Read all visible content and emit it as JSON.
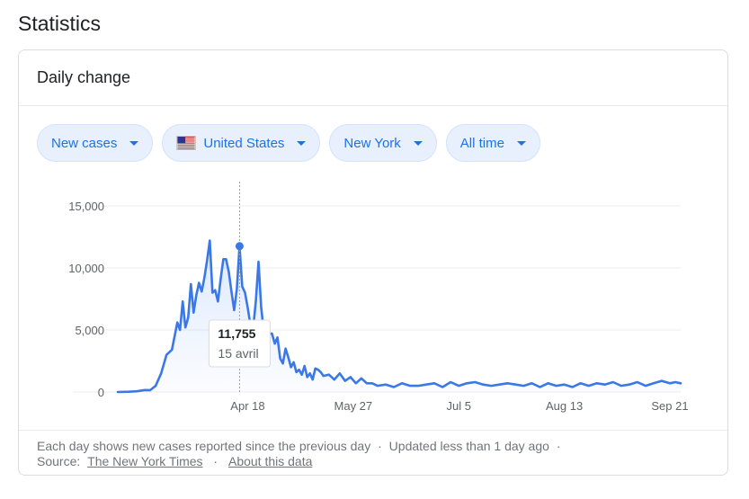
{
  "page": {
    "title": "Statistics"
  },
  "card": {
    "title": "Daily change"
  },
  "filters": [
    {
      "label": "New cases",
      "icon": ""
    },
    {
      "label": "United States",
      "icon": "us-flag-icon"
    },
    {
      "label": "New York",
      "icon": ""
    },
    {
      "label": "All time",
      "icon": ""
    }
  ],
  "tooltip": {
    "value": "11,755",
    "date": "15 avril"
  },
  "colors": {
    "line": "#3b78e7",
    "chip_bg": "#e8f0fe",
    "chip_text": "#1a73e8"
  },
  "footer": {
    "note": "Each day shows new cases reported since the previous day",
    "updated": "Updated less than 1 day ago",
    "source_label": "Source:",
    "source_link": "The New York Times",
    "about_link": "About this data"
  },
  "chart_data": {
    "type": "area",
    "xlabel": "",
    "ylabel": "",
    "ylim": [
      0,
      15000
    ],
    "yticks": [
      "0",
      "5,000",
      "10,000",
      "15,000"
    ],
    "xticks": [
      "Apr 18",
      "May 27",
      "Jul 5",
      "Aug 13",
      "Sep 21"
    ],
    "x_start": "2020-03-01",
    "x_end": "2020-09-25",
    "highlight": {
      "x": "2020-04-15",
      "y": 11755
    },
    "series": [
      {
        "name": "New cases",
        "x": [
          "2020-03-01",
          "2020-03-05",
          "2020-03-08",
          "2020-03-11",
          "2020-03-13",
          "2020-03-15",
          "2020-03-17",
          "2020-03-19",
          "2020-03-21",
          "2020-03-23",
          "2020-03-24",
          "2020-03-25",
          "2020-03-26",
          "2020-03-27",
          "2020-03-28",
          "2020-03-29",
          "2020-03-30",
          "2020-03-31",
          "2020-04-01",
          "2020-04-02",
          "2020-04-03",
          "2020-04-04",
          "2020-04-05",
          "2020-04-06",
          "2020-04-07",
          "2020-04-08",
          "2020-04-09",
          "2020-04-10",
          "2020-04-11",
          "2020-04-12",
          "2020-04-13",
          "2020-04-14",
          "2020-04-15",
          "2020-04-16",
          "2020-04-17",
          "2020-04-18",
          "2020-04-19",
          "2020-04-20",
          "2020-04-21",
          "2020-04-22",
          "2020-04-23",
          "2020-04-24",
          "2020-04-25",
          "2020-04-26",
          "2020-04-27",
          "2020-04-28",
          "2020-04-29",
          "2020-04-30",
          "2020-05-01",
          "2020-05-02",
          "2020-05-03",
          "2020-05-04",
          "2020-05-05",
          "2020-05-06",
          "2020-05-07",
          "2020-05-08",
          "2020-05-09",
          "2020-05-10",
          "2020-05-11",
          "2020-05-12",
          "2020-05-13",
          "2020-05-14",
          "2020-05-15",
          "2020-05-16",
          "2020-05-18",
          "2020-05-20",
          "2020-05-22",
          "2020-05-24",
          "2020-05-26",
          "2020-05-28",
          "2020-05-30",
          "2020-06-01",
          "2020-06-03",
          "2020-06-05",
          "2020-06-08",
          "2020-06-11",
          "2020-06-14",
          "2020-06-17",
          "2020-06-20",
          "2020-06-23",
          "2020-06-26",
          "2020-06-29",
          "2020-07-02",
          "2020-07-05",
          "2020-07-08",
          "2020-07-11",
          "2020-07-14",
          "2020-07-17",
          "2020-07-20",
          "2020-07-23",
          "2020-07-26",
          "2020-07-29",
          "2020-08-01",
          "2020-08-04",
          "2020-08-07",
          "2020-08-10",
          "2020-08-13",
          "2020-08-16",
          "2020-08-19",
          "2020-08-22",
          "2020-08-25",
          "2020-08-28",
          "2020-08-31",
          "2020-09-03",
          "2020-09-06",
          "2020-09-09",
          "2020-09-12",
          "2020-09-15",
          "2020-09-18",
          "2020-09-21",
          "2020-09-23",
          "2020-09-25"
        ],
        "y": [
          0,
          20,
          60,
          160,
          150,
          500,
          1500,
          3000,
          3400,
          5600,
          5000,
          7300,
          5200,
          6000,
          8700,
          6400,
          7800,
          8800,
          8100,
          9200,
          10600,
          12200,
          8000,
          8200,
          7300,
          9100,
          10700,
          10700,
          9700,
          8100,
          6600,
          8300,
          11755,
          8500,
          8000,
          6800,
          5400,
          5100,
          7300,
          10500,
          6800,
          4800,
          3300,
          4700,
          4700,
          3900,
          4400,
          2700,
          2300,
          3500,
          2800,
          2000,
          2400,
          1600,
          1800,
          1400,
          2100,
          1200,
          1500,
          1000,
          1900,
          1800,
          1600,
          1300,
          1400,
          1000,
          1500,
          900,
          1200,
          700,
          1100,
          700,
          700,
          500,
          600,
          400,
          700,
          500,
          500,
          600,
          700,
          400,
          800,
          500,
          700,
          800,
          600,
          500,
          600,
          700,
          600,
          500,
          700,
          400,
          700,
          500,
          600,
          400,
          700,
          500,
          700,
          600,
          800,
          500,
          600,
          800,
          500,
          700,
          900,
          700,
          800,
          700
        ]
      }
    ]
  }
}
